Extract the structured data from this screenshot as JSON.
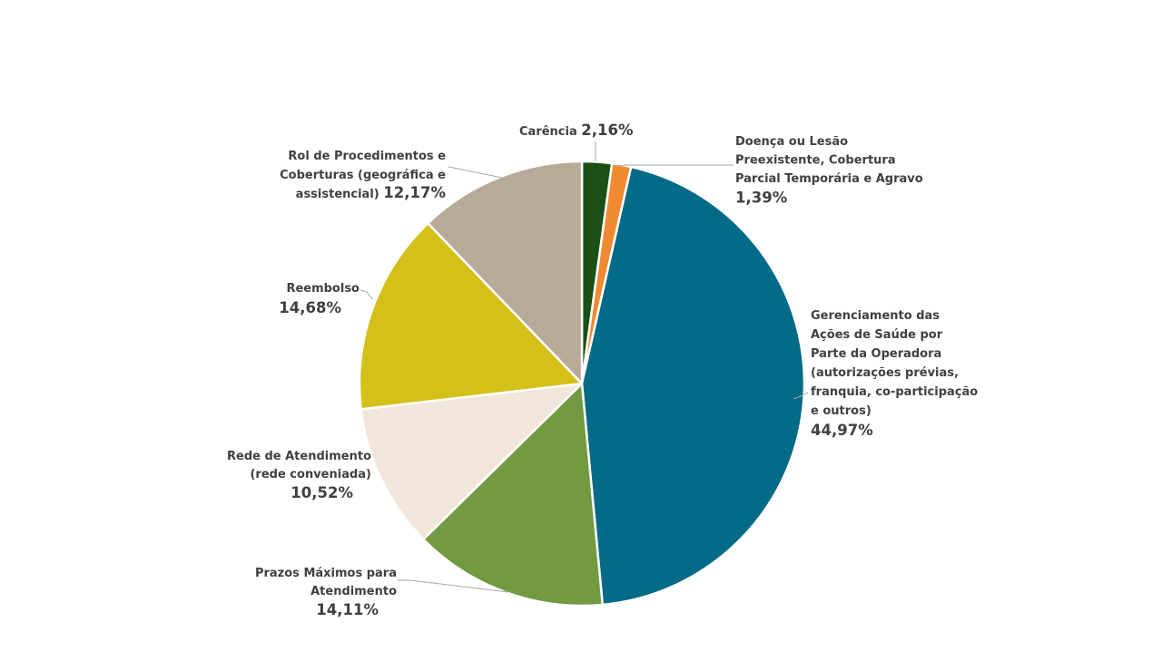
{
  "chart_data": {
    "type": "pie",
    "title": "",
    "start_angle_deg": 0,
    "direction": "clockwise",
    "slices": [
      {
        "label_lines": [
          "Carência"
        ],
        "percent_label": "2,16%",
        "value": 2.16,
        "color": "#1b5017"
      },
      {
        "label_lines": [
          "Doença ou Lesão",
          "Preexistente, Cobertura",
          "Parcial Temporária e Agravo"
        ],
        "percent_label": "1,39%",
        "value": 1.39,
        "color": "#f08a32"
      },
      {
        "label_lines": [
          "Gerenciamento das",
          "Ações de Saúde por",
          "Parte da Operadora",
          "(autorizações prévias,",
          "franquia, co-participação",
          "e outros)"
        ],
        "percent_label": "44,97%",
        "value": 44.97,
        "color": "#036b87"
      },
      {
        "label_lines": [
          "Prazos Máximos para",
          "Atendimento"
        ],
        "percent_label": "14,11%",
        "value": 14.11,
        "color": "#719a41"
      },
      {
        "label_lines": [
          "Rede de Atendimento",
          "(rede conveniada)"
        ],
        "percent_label": "10,52%",
        "value": 10.52,
        "color": "#f1e6da"
      },
      {
        "label_lines": [
          "Reembolso"
        ],
        "percent_label": "14,68%",
        "value": 14.68,
        "color": "#d5c019"
      },
      {
        "label_lines": [
          "Rol de Procedimentos e",
          "Coberturas (geográfica e",
          "assistencial)"
        ],
        "percent_label": "12,17%",
        "value": 12.17,
        "color": "#b8aa98"
      }
    ]
  }
}
